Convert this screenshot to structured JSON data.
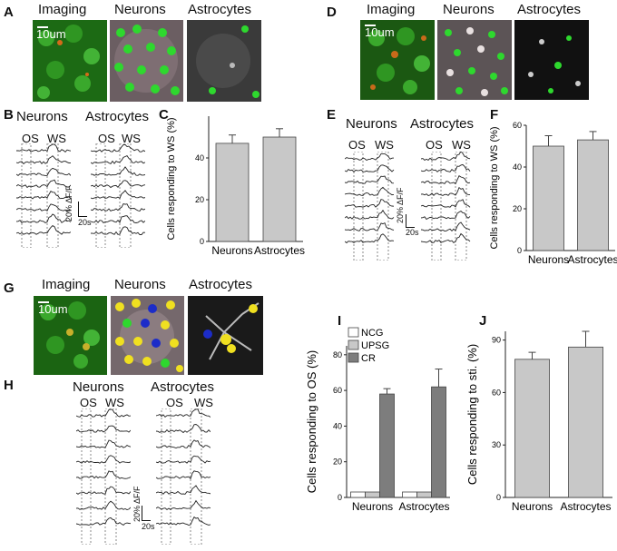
{
  "panels": {
    "A": {
      "letter": "A",
      "titles": [
        "Imaging",
        "Neurons",
        "Astrocytes"
      ],
      "scale": "10um"
    },
    "B": {
      "letter": "B",
      "neurons": "Neurons",
      "astrocytes": "Astrocytes",
      "os": "OS",
      "ws": "WS",
      "scale_y": "20% ΔF/F",
      "scale_x": "20s"
    },
    "D": {
      "letter": "D",
      "titles": [
        "Imaging",
        "Neurons",
        "Astrocytes"
      ],
      "scale": "10um"
    },
    "E": {
      "letter": "E",
      "neurons": "Neurons",
      "astrocytes": "Astrocytes",
      "os": "OS",
      "ws": "WS",
      "scale_y": "20% ΔF/F",
      "scale_x": "20s"
    },
    "G": {
      "letter": "G",
      "titles": [
        "Imaging",
        "Neurons",
        "Astrocytes"
      ],
      "scale": "10um"
    },
    "H": {
      "letter": "H",
      "neurons": "Neurons",
      "astrocytes": "Astrocytes",
      "os": "OS",
      "ws": "WS",
      "scale_y": "20% ΔF/F",
      "scale_x": "20s"
    }
  },
  "chart_data": [
    {
      "panel": "C",
      "type": "bar",
      "categories": [
        "Neurons",
        "Astrocytes"
      ],
      "series": [
        {
          "values": [
            47,
            50
          ],
          "errors": [
            4,
            4
          ]
        }
      ],
      "ylabel": "Cells responding to WS (%)",
      "ylim": [
        0,
        60
      ],
      "yticks": [
        0,
        20,
        40
      ],
      "bar_color": "#c8c8c8"
    },
    {
      "panel": "F",
      "type": "bar",
      "categories": [
        "Neurons",
        "Astrocytes"
      ],
      "series": [
        {
          "values": [
            50,
            53
          ],
          "errors": [
            5,
            4
          ]
        }
      ],
      "ylabel": "Cells responding to WS (%)",
      "ylim": [
        0,
        60
      ],
      "yticks": [
        0,
        20,
        40,
        60
      ],
      "bar_color": "#c8c8c8"
    },
    {
      "panel": "I",
      "type": "bar",
      "categories": [
        "Neurons",
        "Astrocytes"
      ],
      "series": [
        {
          "name": "NCG",
          "values": [
            0,
            0
          ],
          "errors": [
            0,
            0
          ],
          "color": "#ffffff"
        },
        {
          "name": "UPSG",
          "values": [
            0,
            0
          ],
          "errors": [
            0,
            0
          ],
          "color": "#c8c8c8"
        },
        {
          "name": "CR",
          "values": [
            58,
            62
          ],
          "errors": [
            3,
            10
          ],
          "color": "#7d7d7d"
        }
      ],
      "ylabel": "Cells responding to OS (%)",
      "ylim": [
        0,
        85
      ],
      "yticks": [
        0,
        20,
        40,
        60,
        80
      ],
      "legend": "top-left"
    },
    {
      "panel": "J",
      "type": "bar",
      "categories": [
        "Neurons",
        "Astrocytes"
      ],
      "series": [
        {
          "values": [
            79,
            86
          ],
          "errors": [
            4,
            9
          ]
        }
      ],
      "ylabel": "Cells responding to sti. (%)",
      "ylim": [
        0,
        95
      ],
      "yticks": [
        0,
        30,
        60,
        90
      ],
      "bar_color": "#c8c8c8"
    }
  ]
}
